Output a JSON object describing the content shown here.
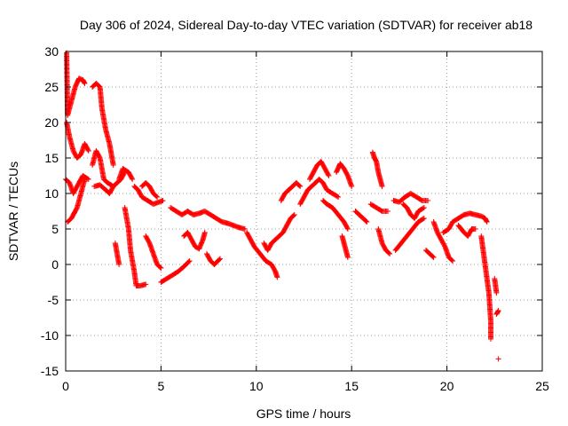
{
  "chart_data": {
    "type": "scatter",
    "title": "Day 306 of 2024, Sidereal Day-to-day VTEC variation (SDTVAR) for receiver ab18",
    "xlabel": "GPS time / hours",
    "ylabel": "SDTVAR / TECUs",
    "xlim": [
      0,
      25
    ],
    "ylim": [
      -15,
      30
    ],
    "xticks": [
      0,
      5,
      10,
      15,
      20,
      25
    ],
    "yticks": [
      -15,
      -10,
      -5,
      0,
      5,
      10,
      15,
      20,
      25,
      30
    ],
    "grid": true,
    "marker": "plus",
    "color": "#ff0000",
    "series": [
      {
        "name": "SDTVAR",
        "tracks": [
          [
            [
              0.05,
              29.8
            ],
            [
              0.1,
              21
            ],
            [
              0.3,
              23
            ],
            [
              0.5,
              25
            ],
            [
              0.7,
              26.2
            ],
            [
              0.9,
              26
            ],
            [
              1.0,
              25.5
            ]
          ],
          [
            [
              0.05,
              20
            ],
            [
              0.2,
              18
            ],
            [
              0.4,
              16
            ],
            [
              0.6,
              15
            ],
            [
              0.8,
              15.5
            ],
            [
              1.0,
              17
            ],
            [
              1.2,
              16
            ]
          ],
          [
            [
              0.0,
              12
            ],
            [
              0.2,
              11.5
            ],
            [
              0.4,
              10
            ],
            [
              0.6,
              11
            ],
            [
              0.9,
              12.5
            ],
            [
              1.2,
              12
            ]
          ],
          [
            [
              0.1,
              6
            ],
            [
              0.3,
              6.5
            ],
            [
              0.6,
              8
            ],
            [
              0.8,
              10
            ],
            [
              1.0,
              12
            ]
          ],
          [
            [
              1.4,
              25
            ],
            [
              1.6,
              25.5
            ],
            [
              1.8,
              25
            ],
            [
              1.9,
              22
            ],
            [
              2.1,
              19
            ],
            [
              2.3,
              17
            ],
            [
              2.4,
              15.5
            ],
            [
              2.5,
              14
            ]
          ],
          [
            [
              1.4,
              14
            ],
            [
              1.6,
              16
            ],
            [
              1.8,
              15
            ],
            [
              2.0,
              12
            ],
            [
              2.2,
              11.5
            ],
            [
              2.5,
              11
            ],
            [
              2.7,
              11.5
            ],
            [
              2.9,
              12
            ],
            [
              3.1,
              13
            ]
          ],
          [
            [
              1.5,
              11
            ],
            [
              1.8,
              11.2
            ],
            [
              2.1,
              10.5
            ],
            [
              2.3,
              10
            ],
            [
              2.5,
              11
            ]
          ],
          [
            [
              2.8,
              12
            ],
            [
              3.0,
              13.5
            ],
            [
              3.3,
              13
            ],
            [
              3.5,
              12
            ]
          ],
          [
            [
              2.6,
              3
            ],
            [
              2.7,
              1.5
            ],
            [
              2.8,
              0
            ]
          ],
          [
            [
              3.1,
              8
            ],
            [
              3.3,
              5
            ],
            [
              3.4,
              2
            ],
            [
              3.6,
              -1
            ],
            [
              3.7,
              -3
            ],
            [
              3.9,
              -3
            ],
            [
              4.2,
              -2.8
            ]
          ],
          [
            [
              3.6,
              11
            ],
            [
              3.8,
              10.5
            ],
            [
              4.0,
              9.5
            ],
            [
              4.3,
              9
            ],
            [
              4.6,
              8.5
            ],
            [
              4.9,
              8.8
            ],
            [
              5.1,
              9
            ]
          ],
          [
            [
              4.0,
              11
            ],
            [
              4.2,
              11.5
            ],
            [
              4.4,
              11
            ],
            [
              4.6,
              10
            ],
            [
              4.8,
              9.5
            ]
          ],
          [
            [
              4.2,
              4
            ],
            [
              4.4,
              3
            ],
            [
              4.6,
              1.5
            ],
            [
              4.8,
              0
            ],
            [
              5.0,
              -0.5
            ]
          ],
          [
            [
              5.0,
              -2.5
            ],
            [
              5.3,
              -2
            ],
            [
              5.6,
              -1.5
            ],
            [
              5.9,
              -1
            ],
            [
              6.2,
              -0.3
            ],
            [
              6.5,
              0.5
            ]
          ],
          [
            [
              5.5,
              8
            ],
            [
              5.8,
              7.5
            ],
            [
              6.1,
              7
            ],
            [
              6.4,
              7.5
            ],
            [
              6.7,
              7
            ],
            [
              7.0,
              7.2
            ],
            [
              7.3,
              7.5
            ],
            [
              7.6,
              7
            ],
            [
              7.9,
              6.5
            ],
            [
              8.2,
              6
            ],
            [
              8.5,
              5.8
            ],
            [
              8.8,
              5.5
            ],
            [
              9.1,
              5.2
            ],
            [
              9.4,
              5
            ]
          ],
          [
            [
              6.2,
              4
            ],
            [
              6.4,
              4.5
            ],
            [
              6.6,
              3.5
            ],
            [
              6.8,
              2.5
            ],
            [
              7.0,
              2.2
            ],
            [
              7.2,
              3.5
            ],
            [
              7.3,
              4.5
            ]
          ],
          [
            [
              7.4,
              1.5
            ],
            [
              7.6,
              0.5
            ],
            [
              7.8,
              0
            ],
            [
              8.1,
              0.8
            ]
          ],
          [
            [
              9.5,
              4.5
            ],
            [
              9.7,
              3.5
            ],
            [
              9.9,
              2.5
            ],
            [
              10.2,
              1.5
            ],
            [
              10.5,
              0.5
            ],
            [
              10.8,
              0
            ],
            [
              11.0,
              -1
            ],
            [
              11.1,
              -1.8
            ]
          ],
          [
            [
              10.4,
              3
            ],
            [
              10.6,
              2
            ],
            [
              10.8,
              3
            ],
            [
              11.0,
              3.5
            ],
            [
              11.2,
              4
            ],
            [
              11.4,
              4.5
            ],
            [
              11.6,
              5.5
            ],
            [
              11.8,
              6.5
            ],
            [
              12.0,
              7
            ]
          ],
          [
            [
              11.3,
              9
            ],
            [
              11.5,
              10
            ],
            [
              11.7,
              10.5
            ],
            [
              11.9,
              11
            ],
            [
              12.1,
              11.5
            ],
            [
              12.3,
              11
            ]
          ],
          [
            [
              12.3,
              8.5
            ],
            [
              12.5,
              9.5
            ],
            [
              12.7,
              10.5
            ],
            [
              12.9,
              11
            ],
            [
              13.1,
              11.5
            ],
            [
              13.3,
              12
            ],
            [
              13.5,
              11.5
            ],
            [
              13.7,
              10.5
            ],
            [
              14.0,
              10
            ],
            [
              14.3,
              9.5
            ]
          ],
          [
            [
              12.8,
              12
            ],
            [
              13.0,
              13
            ],
            [
              13.2,
              14
            ],
            [
              13.4,
              14.5
            ],
            [
              13.6,
              13.5
            ],
            [
              13.8,
              12.5
            ]
          ],
          [
            [
              13.5,
              9
            ],
            [
              13.7,
              8.5
            ],
            [
              14.0,
              8
            ],
            [
              14.3,
              7
            ],
            [
              14.6,
              6
            ],
            [
              14.8,
              5
            ]
          ],
          [
            [
              14.2,
              13
            ],
            [
              14.4,
              14.2
            ],
            [
              14.6,
              13.5
            ],
            [
              14.8,
              12.5
            ],
            [
              15.0,
              11
            ]
          ],
          [
            [
              14.5,
              4
            ],
            [
              14.6,
              3
            ],
            [
              14.7,
              2
            ],
            [
              14.8,
              1
            ]
          ],
          [
            [
              15.2,
              7.5
            ],
            [
              15.4,
              7
            ],
            [
              15.6,
              6.5
            ],
            [
              15.8,
              6
            ]
          ],
          [
            [
              16.0,
              8.5
            ],
            [
              16.3,
              8
            ],
            [
              16.6,
              7.5
            ],
            [
              16.9,
              7.5
            ]
          ],
          [
            [
              16.1,
              15.8
            ],
            [
              16.2,
              15
            ],
            [
              16.3,
              14.5
            ],
            [
              16.4,
              13
            ],
            [
              16.5,
              12
            ],
            [
              16.6,
              11
            ]
          ],
          [
            [
              16.4,
              5
            ],
            [
              16.6,
              3
            ],
            [
              16.8,
              2
            ],
            [
              17.0,
              1.5
            ]
          ],
          [
            [
              17.2,
              9
            ],
            [
              17.5,
              8.8
            ],
            [
              17.8,
              9.5
            ],
            [
              18.1,
              10
            ],
            [
              18.4,
              9.5
            ],
            [
              18.7,
              9
            ],
            [
              19.0,
              9
            ]
          ],
          [
            [
              17.3,
              2
            ],
            [
              17.6,
              3
            ],
            [
              17.9,
              4
            ],
            [
              18.2,
              5
            ],
            [
              18.5,
              6
            ],
            [
              18.8,
              6.5
            ]
          ],
          [
            [
              17.7,
              8.5
            ],
            [
              17.9,
              8
            ],
            [
              18.1,
              7
            ],
            [
              18.3,
              6.5
            ],
            [
              18.5,
              7.5
            ],
            [
              18.8,
              8
            ]
          ],
          [
            [
              18.9,
              2
            ],
            [
              19.1,
              1.5
            ],
            [
              19.3,
              1
            ]
          ],
          [
            [
              19.3,
              6
            ],
            [
              19.5,
              4.5
            ],
            [
              19.7,
              3.5
            ],
            [
              19.9,
              2.5
            ],
            [
              20.1,
              1
            ],
            [
              20.3,
              0.5
            ]
          ],
          [
            [
              19.8,
              4.5
            ],
            [
              20.1,
              5
            ],
            [
              20.3,
              6
            ],
            [
              20.6,
              6.5
            ],
            [
              20.9,
              7
            ],
            [
              21.2,
              7.2
            ],
            [
              21.5,
              7
            ],
            [
              21.8,
              6.8
            ],
            [
              22.0,
              6.5
            ],
            [
              22.1,
              6
            ]
          ],
          [
            [
              20.6,
              5.5
            ],
            [
              20.9,
              4.5
            ],
            [
              21.1,
              4
            ],
            [
              21.3,
              5
            ],
            [
              21.5,
              5
            ]
          ],
          [
            [
              21.8,
              4
            ],
            [
              21.9,
              2
            ],
            [
              22.0,
              0
            ],
            [
              22.1,
              -2
            ],
            [
              22.2,
              -4
            ],
            [
              22.25,
              -6
            ],
            [
              22.3,
              -8
            ],
            [
              22.3,
              -10.5
            ]
          ],
          [
            [
              22.5,
              -2
            ],
            [
              22.6,
              -4
            ]
          ],
          [
            [
              22.6,
              -7
            ],
            [
              22.7,
              -6.5
            ]
          ],
          [
            [
              22.7,
              -13.3
            ]
          ]
        ]
      }
    ]
  }
}
